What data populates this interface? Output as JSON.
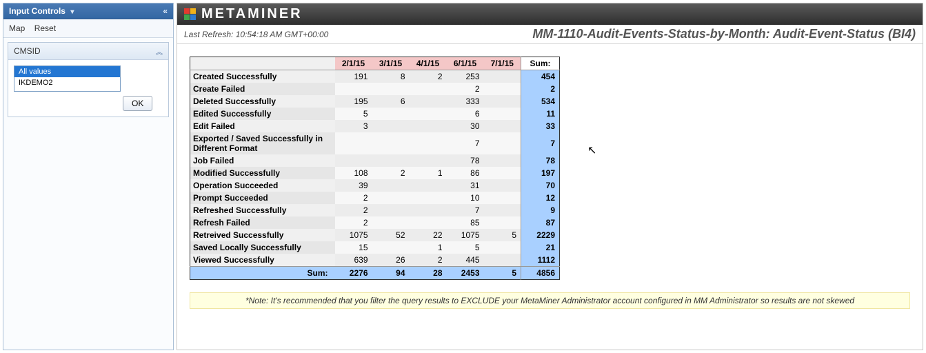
{
  "sidebar": {
    "title": "Input Controls",
    "toolbar": {
      "map": "Map",
      "reset": "Reset"
    },
    "panel": {
      "title": "CMSID",
      "options": [
        "All values",
        "IKDEMO2"
      ],
      "selected_index": 0,
      "ok_label": "OK"
    }
  },
  "header": {
    "brand": "METAMINER",
    "last_refresh_label": "Last Refresh: 10:54:18 AM GMT+00:00",
    "report_title": "MM-1110-Audit-Events-Status-by-Month: Audit-Event-Status (BI4)"
  },
  "table": {
    "columns": [
      "2/1/15",
      "3/1/15",
      "4/1/15",
      "6/1/15",
      "7/1/15"
    ],
    "sum_header": "Sum:",
    "rows": [
      {
        "label": "Created Successfully",
        "vals": [
          "191",
          "8",
          "2",
          "253",
          ""
        ],
        "sum": "454"
      },
      {
        "label": "Create Failed",
        "vals": [
          "",
          "",
          "",
          "2",
          ""
        ],
        "sum": "2"
      },
      {
        "label": "Deleted Successfully",
        "vals": [
          "195",
          "6",
          "",
          "333",
          ""
        ],
        "sum": "534"
      },
      {
        "label": "Edited Successfully",
        "vals": [
          "5",
          "",
          "",
          "6",
          ""
        ],
        "sum": "11"
      },
      {
        "label": "Edit Failed",
        "vals": [
          "3",
          "",
          "",
          "30",
          ""
        ],
        "sum": "33"
      },
      {
        "label": "Exported / Saved Successfully in Different Format",
        "vals": [
          "",
          "",
          "",
          "7",
          ""
        ],
        "sum": "7"
      },
      {
        "label": "Job Failed",
        "vals": [
          "",
          "",
          "",
          "78",
          ""
        ],
        "sum": "78"
      },
      {
        "label": "Modified Successfully",
        "vals": [
          "108",
          "2",
          "1",
          "86",
          ""
        ],
        "sum": "197"
      },
      {
        "label": "Operation Succeeded",
        "vals": [
          "39",
          "",
          "",
          "31",
          ""
        ],
        "sum": "70"
      },
      {
        "label": "Prompt Succeeded",
        "vals": [
          "2",
          "",
          "",
          "10",
          ""
        ],
        "sum": "12"
      },
      {
        "label": "Refreshed Successfully",
        "vals": [
          "2",
          "",
          "",
          "7",
          ""
        ],
        "sum": "9"
      },
      {
        "label": "Refresh Failed",
        "vals": [
          "2",
          "",
          "",
          "85",
          ""
        ],
        "sum": "87"
      },
      {
        "label": "Retreived Successfully",
        "vals": [
          "1075",
          "52",
          "22",
          "1075",
          "5"
        ],
        "sum": "2229"
      },
      {
        "label": "Saved Locally Successfully",
        "vals": [
          "15",
          "",
          "1",
          "5",
          ""
        ],
        "sum": "21"
      },
      {
        "label": "Viewed Successfully",
        "vals": [
          "639",
          "26",
          "2",
          "445",
          ""
        ],
        "sum": "1112"
      }
    ],
    "footer": {
      "label": "Sum:",
      "vals": [
        "2276",
        "94",
        "28",
        "2453",
        "5"
      ],
      "total": "4856"
    },
    "colors": {
      "header_bg": "#f4c7c7",
      "sum_bg": "#a9d0ff",
      "row_header_bg": "#f0f0f0",
      "alt_row_bg": "#f7f7f7"
    }
  },
  "note": "*Note: It's recommended that you filter the query results to EXCLUDE your MetaMiner Administrator account configured in MM Administrator so results are not skewed"
}
